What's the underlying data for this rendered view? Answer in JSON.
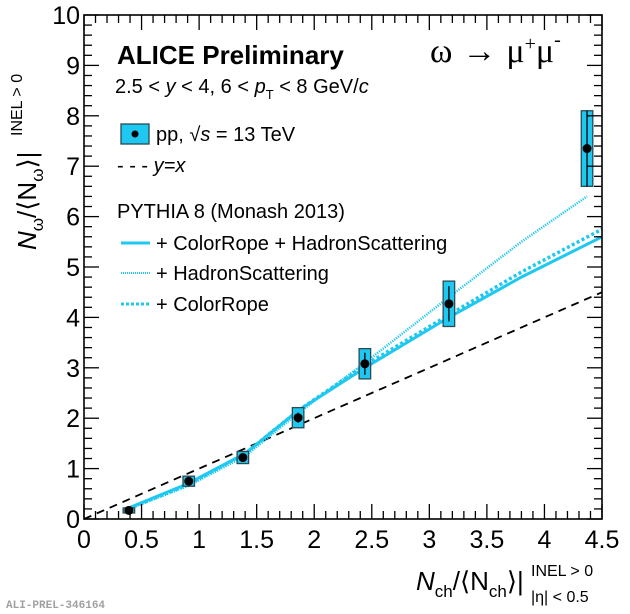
{
  "chart_data": {
    "type": "scatter",
    "title": "ALICE Preliminary",
    "subtitle_parts": [
      "2.5 < ",
      "y",
      " < 4, 6 < ",
      "p",
      "T",
      " < 8 GeV/",
      "c"
    ],
    "process_label": {
      "lhs": "ω",
      "arrow": "→",
      "mu": "μ",
      "plus": "+",
      "minus": "-"
    },
    "xlabel": {
      "main": "N",
      "sub": "ch",
      "mid": "/⟨N",
      "sub2": "ch",
      "close": "⟩|",
      "sup": "INEL > 0",
      "lower": "|η| < 0.5"
    },
    "ylabel": {
      "main": "N",
      "sub": "ω",
      "mid": "/⟨N",
      "sub2": "ω",
      "close": "⟩|",
      "sup": "INEL > 0"
    },
    "xlim": [
      0,
      4.5
    ],
    "ylim": [
      0,
      10
    ],
    "x_ticks": [
      0,
      0.5,
      1,
      1.5,
      2,
      2.5,
      3,
      3.5,
      4,
      4.5
    ],
    "x_tick_labels": [
      "0",
      "0.5",
      "1",
      "1.5",
      "2",
      "2.5",
      "3",
      "3.5",
      "4",
      "4.5"
    ],
    "y_ticks": [
      0,
      1,
      2,
      3,
      4,
      5,
      6,
      7,
      8,
      9,
      10
    ],
    "y_tick_labels": [
      "0",
      "1",
      "2",
      "3",
      "4",
      "5",
      "6",
      "7",
      "8",
      "9",
      "10"
    ],
    "grid": false,
    "legend": {
      "placement": "top-left",
      "entries": [
        {
          "label_parts": [
            "pp, ",
            "√",
            "s",
            " = 13 TeV"
          ],
          "style": "box-point"
        },
        {
          "label_parts": [
            "- - - ",
            "y=x"
          ],
          "style": "dashed"
        },
        {
          "label": "PYTHIA 8 (Monash 2013)",
          "style": "header"
        },
        {
          "label": "+ ColorRope + HadronScattering",
          "style": "solid"
        },
        {
          "label": "+ HadronScattering",
          "style": "fine-dotted"
        },
        {
          "label": "+ ColorRope",
          "style": "dotted"
        }
      ]
    },
    "colors": {
      "model": "#1ec8f0",
      "box_fill": "#1ec8f0",
      "box_edge": "#2a4a55",
      "point": "#000000",
      "diagonal": "#000000"
    },
    "series": [
      {
        "name": "pp, √s = 13 TeV",
        "x": [
          0.39,
          0.91,
          1.38,
          1.86,
          2.44,
          3.17,
          4.37
        ],
        "y": [
          0.17,
          0.75,
          1.22,
          2.01,
          3.08,
          4.27,
          7.35
        ],
        "stat_err": [
          0.02,
          0.04,
          0.05,
          0.1,
          0.22,
          0.35,
          0.75
        ],
        "sys_err": [
          0.05,
          0.1,
          0.12,
          0.2,
          0.3,
          0.45,
          0.75
        ],
        "x_sys_err": [
          0.05,
          0.05,
          0.05,
          0.05,
          0.05,
          0.05,
          0.05
        ]
      },
      {
        "name": "y=x",
        "x": [
          0,
          4.5
        ],
        "y": [
          0,
          4.5
        ]
      },
      {
        "name": "+ ColorRope + HadronScattering",
        "x": [
          0.39,
          0.9,
          1.4,
          1.86,
          2.44,
          3.17,
          3.8,
          4.5
        ],
        "y": [
          0.22,
          0.7,
          1.3,
          2.15,
          3.0,
          4.0,
          4.8,
          5.6
        ]
      },
      {
        "name": "+ HadronScattering",
        "x": [
          0.39,
          0.9,
          1.4,
          1.86,
          2.44,
          3.17,
          3.8,
          4.37
        ],
        "y": [
          0.2,
          0.65,
          1.25,
          2.1,
          3.1,
          4.4,
          5.5,
          6.4
        ]
      },
      {
        "name": "+ ColorRope",
        "x": [
          0.39,
          0.9,
          1.4,
          1.86,
          2.44,
          3.17,
          3.8,
          4.5
        ],
        "y": [
          0.21,
          0.68,
          1.3,
          2.15,
          3.05,
          4.05,
          4.9,
          5.75
        ]
      }
    ],
    "watermark": "ALI-PREL-346164"
  }
}
